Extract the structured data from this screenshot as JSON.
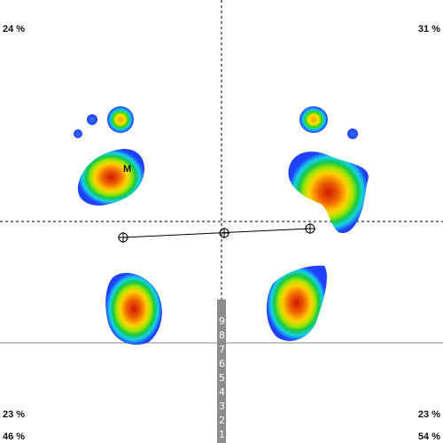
{
  "quadrants": {
    "top_left": "24 %",
    "top_right": "31 %",
    "bottom_left": "23 %",
    "bottom_right": "23 %"
  },
  "totals": {
    "left": "46 %",
    "right": "54 %"
  },
  "marker_label": "M",
  "scale_levels": [
    "9",
    "8",
    "7",
    "6",
    "5",
    "4",
    "3",
    "2",
    "1"
  ],
  "colors": {
    "scale_bar": "#8c8c8c",
    "guides": "#000000",
    "pressure_low": "#1e50ff",
    "pressure_mid": "#22cc22",
    "pressure_high": "#ffee00",
    "pressure_peak": "#e82000"
  }
}
